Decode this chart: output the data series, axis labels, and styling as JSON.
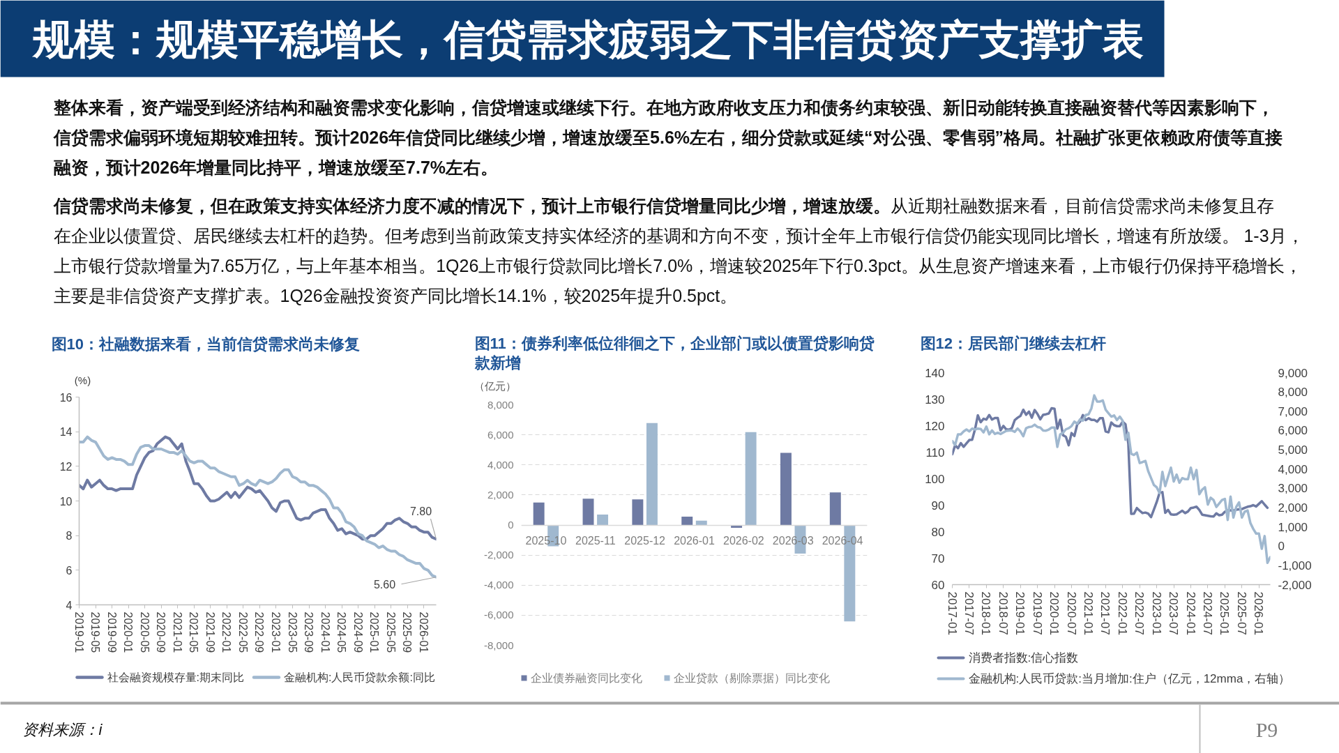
{
  "chart_data": [
    {
      "type": "other",
      "title": "规模：规模平稳增长，信贷需求疲弱之下非信贷资产支撑扩表",
      "annotations": [
        "整体来看，资产端受到经济结构和融资需求变化影响，信贷增速或继续下行。在地方政府收支压力和债务约束较强、新旧动能转换直接融资替代等因素影响下，信贷需求偏弱环境短期较难扭转。预计2026年信贷同比继续少增，增速放缓至5.6%左右，细分贷款或延续“对公强、零售弱”格局。社融扩张更依赖政府债等直接融资，预计2026年增量同比持平，增速放缓至7.7%左右。",
        "信贷需求尚未修复，但在政策支持实体经济力度不减的情况下，预计上市银行信贷增量同比少增，增速放缓。",
        "从近期社融数据来看，目前信贷需求尚未修复且存在企业以债置贷、居民继续去杠杆的趋势。但考虑到当前政策支持实体经济的基调和方向不变，预计全年上市银行信贷仍能实现同比增长，增速有所放缓。 1-3月，上市银行贷款增量为7.65万亿，与上年基本相当。1Q26上市银行贷款同比增长7.0%，增速较2025年下行0.3pct。从生息资产增速来看，上市银行仍保持平稳增长，主要是非信贷资产支撑扩表。1Q26金融投资资产同比增长14.1%，较2025年提升0.5pct。",
        "资料来源：i",
        "P9"
      ]
    },
    {
      "type": "line",
      "title": "图10：社融数据来看，当前信贷需求尚未修复",
      "ylabel": "(%)",
      "x": [
        "2019-01",
        "2019-02",
        "2019-03",
        "2019-04",
        "2019-05",
        "2019-06",
        "2019-07",
        "2019-08",
        "2019-09",
        "2019-10",
        "2019-11",
        "2019-12",
        "2020-01",
        "2020-02",
        "2020-03",
        "2020-04",
        "2020-05",
        "2020-06",
        "2020-07",
        "2020-08",
        "2020-09",
        "2020-10",
        "2020-11",
        "2020-12",
        "2021-01",
        "2021-02",
        "2021-03",
        "2021-04",
        "2021-05",
        "2021-06",
        "2021-07",
        "2021-08",
        "2021-09",
        "2021-10",
        "2021-11",
        "2021-12",
        "2022-01",
        "2022-02",
        "2022-03",
        "2022-04",
        "2022-05",
        "2022-06",
        "2022-07",
        "2022-08",
        "2022-09",
        "2022-10",
        "2022-11",
        "2022-12",
        "2023-01",
        "2023-02",
        "2023-03",
        "2023-04",
        "2023-05",
        "2023-06",
        "2023-07",
        "2023-08",
        "2023-09",
        "2023-10",
        "2023-11",
        "2023-12",
        "2024-01",
        "2024-02",
        "2024-03",
        "2024-04",
        "2024-05",
        "2024-06",
        "2024-07",
        "2024-08",
        "2024-09",
        "2024-10",
        "2024-11",
        "2024-12",
        "2025-01",
        "2025-02",
        "2025-03",
        "2025-04",
        "2025-05",
        "2025-06",
        "2025-07",
        "2025-08",
        "2025-09",
        "2025-10",
        "2025-11",
        "2025-12",
        "2026-01",
        "2026-02",
        "2026-03",
        "2026-04"
      ],
      "series": [
        {
          "name": "社会融资规模存量:期末同比",
          "color": "#6e7aa3",
          "values": [
            10.9,
            10.7,
            11.2,
            10.8,
            11.0,
            11.2,
            10.9,
            10.7,
            10.7,
            10.6,
            10.7,
            10.7,
            10.7,
            10.7,
            11.5,
            12.0,
            12.5,
            12.8,
            12.9,
            13.3,
            13.5,
            13.7,
            13.6,
            13.3,
            13.0,
            13.3,
            12.3,
            11.7,
            11.0,
            11.0,
            10.7,
            10.3,
            10.0,
            10.0,
            10.1,
            10.3,
            10.5,
            10.2,
            10.5,
            10.2,
            10.5,
            10.8,
            10.7,
            10.5,
            10.6,
            10.3,
            10.0,
            9.6,
            9.4,
            9.9,
            10.0,
            10.0,
            9.5,
            9.0,
            8.9,
            9.0,
            9.0,
            9.3,
            9.4,
            9.5,
            9.5,
            9.0,
            8.7,
            8.3,
            8.4,
            8.1,
            8.2,
            8.1,
            8.0,
            7.8,
            7.8,
            8.0,
            8.0,
            8.2,
            8.4,
            8.7,
            8.7,
            8.9,
            9.0,
            8.8,
            8.7,
            8.5,
            8.5,
            8.3,
            8.2,
            8.2,
            7.9,
            7.8
          ]
        },
        {
          "name": "金融机构:人民币贷款余额:同比",
          "color": "#a0b8cf",
          "values": [
            13.4,
            13.4,
            13.7,
            13.5,
            13.4,
            13.0,
            12.6,
            12.4,
            12.5,
            12.4,
            12.4,
            12.3,
            12.1,
            12.1,
            12.7,
            13.1,
            13.2,
            13.2,
            13.0,
            13.0,
            13.0,
            12.9,
            12.8,
            12.8,
            12.7,
            12.9,
            12.6,
            12.3,
            12.2,
            12.3,
            12.3,
            12.1,
            11.9,
            11.9,
            11.7,
            11.6,
            11.5,
            11.4,
            11.4,
            10.9,
            11.0,
            11.2,
            11.0,
            10.9,
            11.2,
            11.1,
            11.0,
            11.1,
            11.3,
            11.6,
            11.8,
            11.8,
            11.4,
            11.3,
            11.1,
            11.1,
            10.9,
            10.9,
            10.8,
            10.6,
            10.4,
            10.1,
            9.6,
            9.6,
            9.3,
            8.8,
            8.7,
            8.5,
            8.1,
            8.0,
            7.7,
            7.6,
            7.5,
            7.3,
            7.4,
            7.2,
            7.1,
            7.1,
            6.9,
            6.8,
            6.6,
            6.5,
            6.4,
            6.4,
            6.1,
            6.0,
            5.7,
            5.6
          ]
        }
      ],
      "xlim": [
        "2019-01",
        "2026-04"
      ],
      "xticks": [
        "2019-01",
        "2019-05",
        "2019-09",
        "2020-01",
        "2020-05",
        "2020-09",
        "2021-01",
        "2021-05",
        "2021-09",
        "2022-01",
        "2022-05",
        "2022-09",
        "2023-01",
        "2023-05",
        "2023-09",
        "2024-01",
        "2024-05",
        "2024-09",
        "2025-01",
        "2025-05",
        "2025-09",
        "2026-01"
      ],
      "ylim": [
        4,
        16
      ],
      "yticks": [
        4,
        6,
        8,
        10,
        12,
        14,
        16
      ],
      "legend": "bottom",
      "annotations": [
        {
          "text": "7.80",
          "x": "2026-04",
          "y": 7.8
        },
        {
          "text": "5.60",
          "x": "2026-04",
          "y": 5.6
        }
      ]
    },
    {
      "type": "bar",
      "title": "图11：债券利率低位徘徊之下，企业部门或以债置贷影响贷款新增",
      "ylabel": "（亿元）",
      "categories": [
        "2025-10",
        "2025-11",
        "2025-12",
        "2026-01",
        "2026-02",
        "2026-03",
        "2026-04"
      ],
      "series": [
        {
          "name": "企业债券融资同比变化",
          "color": "#6e7aa3",
          "values": [
            1500,
            1750,
            1700,
            560,
            -180,
            4800,
            2170
          ]
        },
        {
          "name": "企业贷款（剔除票据）同比变化",
          "color": "#a0b8cf",
          "values": [
            -1410,
            690,
            6780,
            290,
            6180,
            -1900,
            -6410
          ]
        }
      ],
      "ylim": [
        -8000,
        8000
      ],
      "yticks": [
        {
          "value": -8000,
          "label": "-8,000"
        },
        {
          "value": -6000,
          "label": "-6,000"
        },
        {
          "value": -4000,
          "label": "-4,000"
        },
        {
          "value": -2000,
          "label": "-2,000"
        },
        0,
        {
          "value": 2000,
          "label": "2,000"
        },
        {
          "value": 4000,
          "label": "4,000"
        },
        {
          "value": 6000,
          "label": "6,000"
        },
        {
          "value": 8000,
          "label": "8,000"
        }
      ],
      "grid": "y",
      "legend": "bottom"
    },
    {
      "type": "line",
      "title": "图12：居民部门继续去杠杆",
      "series": [
        {
          "name": "消费者指数:信心指数",
          "color": "#6e7aa3",
          "x": [
            "2017-01",
            "2017-02",
            "2017-03",
            "2017-04",
            "2017-05",
            "2017-06",
            "2017-07",
            "2017-08",
            "2017-09",
            "2017-10",
            "2017-11",
            "2017-12",
            "2018-01",
            "2018-02",
            "2018-03",
            "2018-04",
            "2018-05",
            "2018-06",
            "2018-07",
            "2018-08",
            "2018-09",
            "2018-10",
            "2018-11",
            "2018-12",
            "2019-01",
            "2019-02",
            "2019-03",
            "2019-04",
            "2019-05",
            "2019-06",
            "2019-07",
            "2019-08",
            "2019-09",
            "2019-10",
            "2019-11",
            "2019-12",
            "2020-01",
            "2020-02",
            "2020-03",
            "2020-04",
            "2020-05",
            "2020-06",
            "2020-07",
            "2020-08",
            "2020-09",
            "2020-10",
            "2020-11",
            "2020-12",
            "2021-01",
            "2021-02",
            "2021-03",
            "2021-04",
            "2021-05",
            "2021-06",
            "2021-07",
            "2021-08",
            "2021-09",
            "2021-10",
            "2021-11",
            "2021-12",
            "2022-01",
            "2022-02",
            "2022-03",
            "2022-04",
            "2022-05",
            "2022-06",
            "2022-07",
            "2022-08",
            "2022-09",
            "2022-10",
            "2022-11",
            "2022-12",
            "2023-01",
            "2023-02",
            "2023-03",
            "2023-04",
            "2023-05",
            "2023-06",
            "2023-07",
            "2023-08",
            "2023-09",
            "2023-10",
            "2023-11",
            "2023-12",
            "2024-01",
            "2024-02",
            "2024-03",
            "2024-04",
            "2024-05",
            "2024-06",
            "2024-07",
            "2024-08",
            "2024-09",
            "2024-10",
            "2024-11",
            "2024-12",
            "2025-01",
            "2025-02",
            "2025-03",
            "2025-04",
            "2025-05",
            "2025-06",
            "2025-07",
            "2025-08",
            "2025-09",
            "2025-10",
            "2025-11",
            "2025-12",
            "2026-01",
            "2026-02",
            "2026-03",
            "2026-04"
          ],
          "values": [
            109.2,
            112.6,
            111.5,
            113.4,
            112.0,
            113.3,
            114.6,
            114.7,
            118.6,
            123.9,
            121.3,
            122.6,
            122.3,
            124.0,
            122.3,
            122.9,
            122.9,
            118.2,
            119.9,
            118.6,
            118.5,
            119.1,
            122.1,
            123.0,
            123.7,
            126.0,
            124.1,
            125.3,
            123.0,
            125.9,
            124.4,
            122.4,
            124.1,
            124.3,
            124.6,
            126.6,
            126.4,
            118.9,
            122.2,
            116.4,
            115.8,
            112.6,
            117.2,
            116.1,
            120.5,
            121.5,
            124.0,
            122.1,
            122.8,
            122.2,
            122.2,
            121.5,
            122.8,
            122.8,
            117.8,
            117.5,
            121.2,
            120.2,
            119.8,
            119.8,
            121.5,
            120.5,
            113.2,
            86.7,
            86.8,
            88.9,
            87.9,
            87.0,
            87.2,
            86.8,
            85.5,
            88.3,
            91.2,
            94.7,
            94.9,
            87.1,
            88.2,
            86.5,
            86.4,
            86.5,
            87.2,
            87.9,
            87.0,
            87.6,
            88.9,
            89.1,
            89.4,
            88.2,
            86.4,
            86.2,
            86.0,
            85.8,
            85.7,
            86.9,
            86.2,
            86.4,
            87.5,
            88.0,
            88.0,
            87.9,
            88.3,
            88.4,
            88.5,
            89.0,
            89.4,
            89.6,
            90.0,
            89.5,
            90.5,
            91.5,
            90.2,
            89.0
          ]
        },
        {
          "name": "金融机构:人民币贷款:当月增加:住户（亿元，12mma，右轴）",
          "color": "#a0b8cf",
          "axis": "y2",
          "x": [
            "2017-01",
            "2017-02",
            "2017-03",
            "2017-04",
            "2017-05",
            "2017-06",
            "2017-07",
            "2017-08",
            "2017-09",
            "2017-10",
            "2017-11",
            "2017-12",
            "2018-01",
            "2018-02",
            "2018-03",
            "2018-04",
            "2018-05",
            "2018-06",
            "2018-07",
            "2018-08",
            "2018-09",
            "2018-10",
            "2018-11",
            "2018-12",
            "2019-01",
            "2019-02",
            "2019-03",
            "2019-04",
            "2019-05",
            "2019-06",
            "2019-07",
            "2019-08",
            "2019-09",
            "2019-10",
            "2019-11",
            "2019-12",
            "2020-01",
            "2020-02",
            "2020-03",
            "2020-04",
            "2020-05",
            "2020-06",
            "2020-07",
            "2020-08",
            "2020-09",
            "2020-10",
            "2020-11",
            "2020-12",
            "2021-01",
            "2021-02",
            "2021-03",
            "2021-04",
            "2021-05",
            "2021-06",
            "2021-07",
            "2021-08",
            "2021-09",
            "2021-10",
            "2021-11",
            "2021-12",
            "2022-01",
            "2022-02",
            "2022-03",
            "2022-04",
            "2022-05",
            "2022-06",
            "2022-07",
            "2022-08",
            "2022-09",
            "2022-10",
            "2022-11",
            "2022-12",
            "2023-01",
            "2023-02",
            "2023-03",
            "2023-04",
            "2023-05",
            "2023-06",
            "2023-07",
            "2023-08",
            "2023-09",
            "2023-10",
            "2023-11",
            "2023-12",
            "2024-01",
            "2024-02",
            "2024-03",
            "2024-04",
            "2024-05",
            "2024-06",
            "2024-07",
            "2024-08",
            "2024-09",
            "2024-10",
            "2024-11",
            "2024-12",
            "2025-01",
            "2025-02",
            "2025-03",
            "2025-04",
            "2025-05",
            "2025-06",
            "2025-07",
            "2025-08",
            "2025-09",
            "2025-10",
            "2025-11",
            "2025-12",
            "2026-01",
            "2026-02",
            "2026-03",
            "2026-04",
            "2026-05"
          ],
          "values": [
            5450,
            5250,
            5800,
            5800,
            5950,
            6050,
            5950,
            6100,
            6050,
            6100,
            6080,
            5900,
            6200,
            5800,
            6000,
            5820,
            5880,
            5820,
            5900,
            5980,
            6000,
            6000,
            5930,
            6100,
            5950,
            5700,
            6120,
            6180,
            6200,
            6300,
            6180,
            6150,
            6000,
            5990,
            6050,
            6150,
            6150,
            5150,
            5800,
            5880,
            6060,
            6120,
            6230,
            6460,
            6350,
            6580,
            6510,
            6800,
            6840,
            7150,
            7820,
            7500,
            7500,
            7560,
            7080,
            6900,
            6720,
            6780,
            6540,
            6720,
            6500,
            5520,
            5880,
            4790,
            4730,
            4850,
            4310,
            4360,
            4420,
            3890,
            3530,
            3170,
            3050,
            2750,
            3850,
            3110,
            3600,
            4070,
            3350,
            3710,
            3290,
            3530,
            3470,
            3470,
            4070,
            3470,
            3950,
            2690,
            2930,
            3050,
            2150,
            2510,
            2390,
            2030,
            2210,
            2390,
            2450,
            1360,
            2570,
            1480,
            2030,
            2270,
            1480,
            1790,
            1850,
            1190,
            890,
            650,
            650,
            -140,
            520,
            -870,
            -570
          ]
        }
      ],
      "xlim": [
        "2017-01",
        "2026-05"
      ],
      "xticks": [
        "2017-01",
        "2017-07",
        "2018-01",
        "2018-07",
        "2019-01",
        "2019-07",
        "2020-01",
        "2020-07",
        "2021-01",
        "2021-07",
        "2022-01",
        "2022-07",
        "2023-01",
        "2023-07",
        "2024-01",
        "2024-07",
        "2025-01",
        "2025-07",
        "2026-01"
      ],
      "ylim": [
        60,
        140
      ],
      "yticks": [
        60,
        70,
        80,
        90,
        100,
        110,
        120,
        130,
        140
      ],
      "y2lim": [
        -2000,
        9000
      ],
      "y2ticks": [
        {
          "value": -2000,
          "label": "-2,000"
        },
        {
          "value": -1000,
          "label": "-1,000"
        },
        0,
        {
          "value": 1000,
          "label": "1,000"
        },
        {
          "value": 2000,
          "label": "2,000"
        },
        {
          "value": 3000,
          "label": "3,000"
        },
        {
          "value": 4000,
          "label": "4,000"
        },
        {
          "value": 5000,
          "label": "5,000"
        },
        {
          "value": 6000,
          "label": "6,000"
        },
        {
          "value": 7000,
          "label": "7,000"
        },
        {
          "value": 8000,
          "label": "8,000"
        },
        {
          "value": 9000,
          "label": "9,000"
        }
      ],
      "legend": "bottom"
    }
  ]
}
